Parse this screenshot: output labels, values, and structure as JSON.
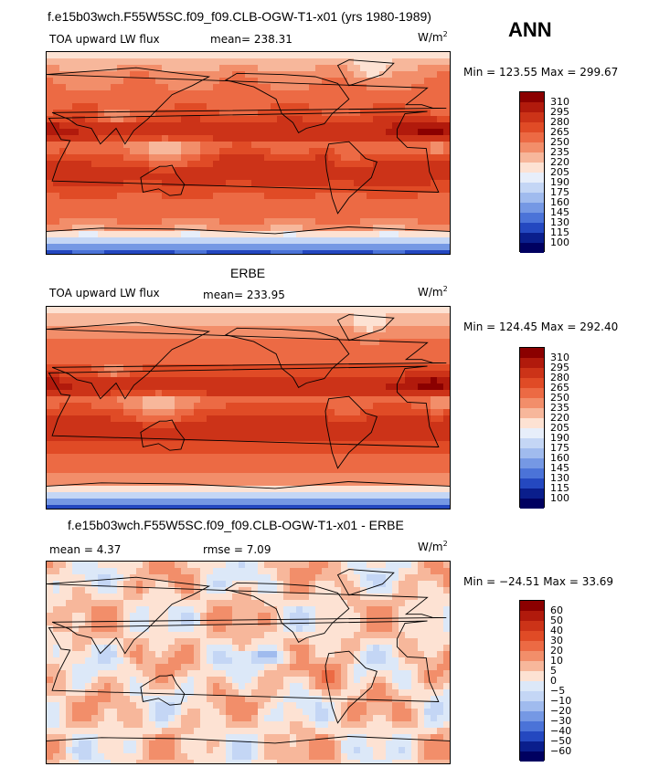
{
  "title_main": "f.e15b03wch.F55W5SC.f09_f09.CLB-OGW-T1-x01 (yrs 1980-1989)",
  "season": "ANN",
  "panels": [
    {
      "title": "",
      "left_label": "TOA upward LW flux",
      "mean_label": "mean= 238.31",
      "rmse_label": "",
      "units": "W/m",
      "units_sup": "2",
      "minmax": "Min = 123.55 Max = 299.67",
      "levels": [
        "310",
        "295",
        "280",
        "265",
        "250",
        "235",
        "220",
        "205",
        "190",
        "175",
        "160",
        "145",
        "130",
        "115",
        "100"
      ]
    },
    {
      "title": "ERBE",
      "left_label": "TOA upward LW flux",
      "mean_label": "mean= 233.95",
      "rmse_label": "",
      "units": "W/m",
      "units_sup": "2",
      "minmax": "Min = 124.45 Max = 292.40",
      "levels": [
        "310",
        "295",
        "280",
        "265",
        "250",
        "235",
        "220",
        "205",
        "190",
        "175",
        "160",
        "145",
        "130",
        "115",
        "100"
      ]
    },
    {
      "title": "f.e15b03wch.F55W5SC.f09_f09.CLB-OGW-T1-x01 - ERBE",
      "left_label": "mean =    4.37",
      "mean_label": "rmse =    7.09",
      "rmse_label": "",
      "units": "W/m",
      "units_sup": "2",
      "minmax": "Min = −24.51 Max =   33.69",
      "levels": [
        "60",
        "50",
        "40",
        "30",
        "20",
        "10",
        "5",
        "0",
        "−5",
        "−10",
        "−20",
        "−30",
        "−40",
        "−50",
        "−60"
      ]
    }
  ],
  "colors": {
    "abs_scale": [
      "#8b0000",
      "#b11a0c",
      "#cc3318",
      "#e04b26",
      "#ec6a44",
      "#f28e6a",
      "#f7b79b",
      "#fde2d3",
      "#e7eefa",
      "#c4d6f5",
      "#a0bbee",
      "#7598e4",
      "#4b73d8",
      "#2448c0",
      "#0a1e8c",
      "#000060"
    ],
    "diff_scale": [
      "#8b0000",
      "#b11a0c",
      "#cc3318",
      "#e04b26",
      "#ec6a44",
      "#f28e6a",
      "#f7b79b",
      "#fde2d3",
      "#dce8f8",
      "#c4d6f5",
      "#a0bbee",
      "#7598e4",
      "#4b73d8",
      "#2448c0",
      "#0a1e8c",
      "#000060"
    ]
  },
  "chart_data": [
    {
      "type": "heatmap",
      "title": "TOA upward LW flux",
      "units": "W/m2",
      "mean": 238.31,
      "min": 123.55,
      "max": 299.67,
      "contour_levels": [
        100,
        115,
        130,
        145,
        160,
        175,
        190,
        205,
        220,
        235,
        250,
        265,
        280,
        295,
        310
      ]
    },
    {
      "type": "heatmap",
      "title": "ERBE TOA upward LW flux",
      "units": "W/m2",
      "mean": 233.95,
      "min": 124.45,
      "max": 292.4,
      "contour_levels": [
        100,
        115,
        130,
        145,
        160,
        175,
        190,
        205,
        220,
        235,
        250,
        265,
        280,
        295,
        310
      ]
    },
    {
      "type": "heatmap",
      "title": "f.e15b03wch.F55W5SC.f09_f09.CLB-OGW-T1-x01 - ERBE",
      "units": "W/m2",
      "mean": 4.37,
      "rmse": 7.09,
      "min": -24.51,
      "max": 33.69,
      "contour_levels": [
        -60,
        -50,
        -40,
        -30,
        -20,
        -10,
        -5,
        0,
        5,
        10,
        20,
        30,
        40,
        50,
        60
      ]
    }
  ]
}
